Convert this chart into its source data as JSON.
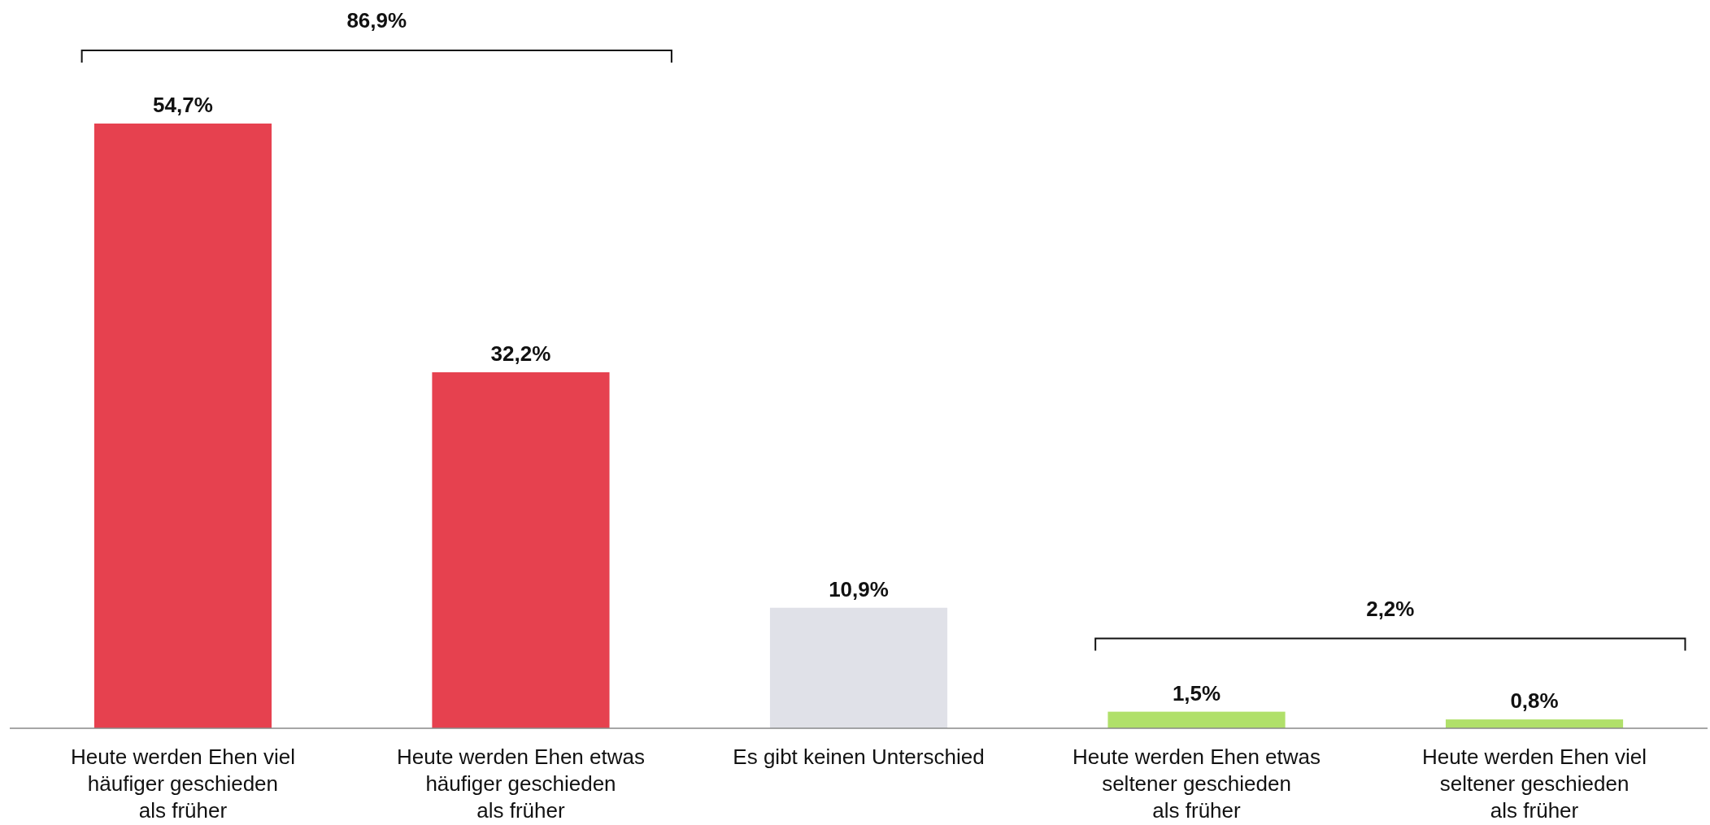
{
  "chart_data": {
    "type": "bar",
    "categories": [
      "Heute werden Ehen viel\nhäufiger geschieden\nals früher",
      "Heute werden Ehen etwas\nhäufiger geschieden\nals früher",
      "Es gibt keinen Unterschied",
      "Heute werden Ehen etwas\nseltener geschieden\nals früher",
      "Heute werden Ehen viel\nseltener geschieden\nals früher"
    ],
    "values": [
      54.7,
      32.2,
      10.9,
      1.5,
      0.8
    ],
    "colors": [
      "#e6414f",
      "#e6414f",
      "#e0e1e8",
      "#b0e06a",
      "#b0e06a"
    ],
    "value_labels": [
      "54,7%",
      "32,2%",
      "10,9%",
      "1,5%",
      "0,8%"
    ],
    "annotations": [
      "86,9%",
      "2,2%"
    ]
  }
}
